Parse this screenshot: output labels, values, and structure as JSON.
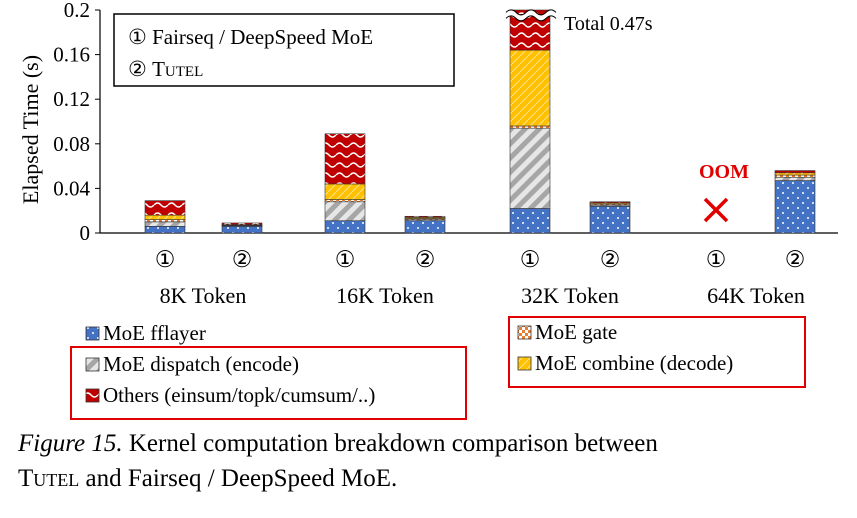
{
  "figure": {
    "caption_prefix": "Figure 15.",
    "caption_line1": " Kernel computation breakdown comparison between",
    "caption_tutel": "Tutel",
    "caption_line2": " and Fairseq / DeepSpeed MoE."
  },
  "inset_legend": {
    "item1": "① Fairseq / DeepSpeed MoE",
    "item2_prefix": "② ",
    "item2_name": "Tutel"
  },
  "annotations": {
    "total": "Total 0.47s",
    "oom": "OOM"
  },
  "colors": {
    "fflayer": "#4472c4",
    "dispatch": "#a6a6a6",
    "others": "#c00000",
    "gate": "#e97c30",
    "combine": "#ffc000",
    "oom": "#e00000",
    "highlight_box": "#e00000"
  },
  "chart_data": {
    "type": "bar",
    "stacked": true,
    "ylabel": "Elapsed Time (s)",
    "ylim": [
      0,
      0.2
    ],
    "yticks": [
      "0",
      "0.04",
      "0.08",
      "0.12",
      "0.16",
      "0.2"
    ],
    "ytick_values": [
      0,
      0.04,
      0.08,
      0.12,
      0.16,
      0.2
    ],
    "groups": [
      "8K Token",
      "16K Token",
      "32K Token",
      "64K Token"
    ],
    "bar_labels": [
      "①",
      "②"
    ],
    "series_order": [
      "MoE fflayer",
      "MoE dispatch (encode)",
      "MoE gate",
      "MoE combine (decode)",
      "Others (einsum/topk/cumsum/..)"
    ],
    "legend_left": [
      "MoE fflayer",
      "MoE dispatch (encode)",
      "Others (einsum/topk/cumsum/..)"
    ],
    "legend_right": [
      "MoE gate",
      "MoE combine (decode)"
    ],
    "bars": [
      {
        "group": "8K Token",
        "label": "①",
        "values": [
          0.006,
          0.004,
          0.002,
          0.004,
          0.013
        ]
      },
      {
        "group": "8K Token",
        "label": "②",
        "values": [
          0.006,
          0.0005,
          0.0005,
          0.0005,
          0.0015
        ]
      },
      {
        "group": "16K Token",
        "label": "①",
        "values": [
          0.011,
          0.017,
          0.002,
          0.014,
          0.045
        ]
      },
      {
        "group": "16K Token",
        "label": "②",
        "values": [
          0.011,
          0.001,
          0.001,
          0.001,
          0.001
        ]
      },
      {
        "group": "32K Token",
        "label": "①",
        "values": [
          0.022,
          0.072,
          0.002,
          0.068,
          0.036
        ],
        "broken": true,
        "total_label": "Total 0.47s"
      },
      {
        "group": "32K Token",
        "label": "②",
        "values": [
          0.024,
          0.001,
          0.001,
          0.001,
          0.001
        ]
      },
      {
        "group": "64K Token",
        "label": "①",
        "values": null,
        "oom": true
      },
      {
        "group": "64K Token",
        "label": "②",
        "values": [
          0.047,
          0.003,
          0.002,
          0.002,
          0.002
        ]
      }
    ]
  }
}
